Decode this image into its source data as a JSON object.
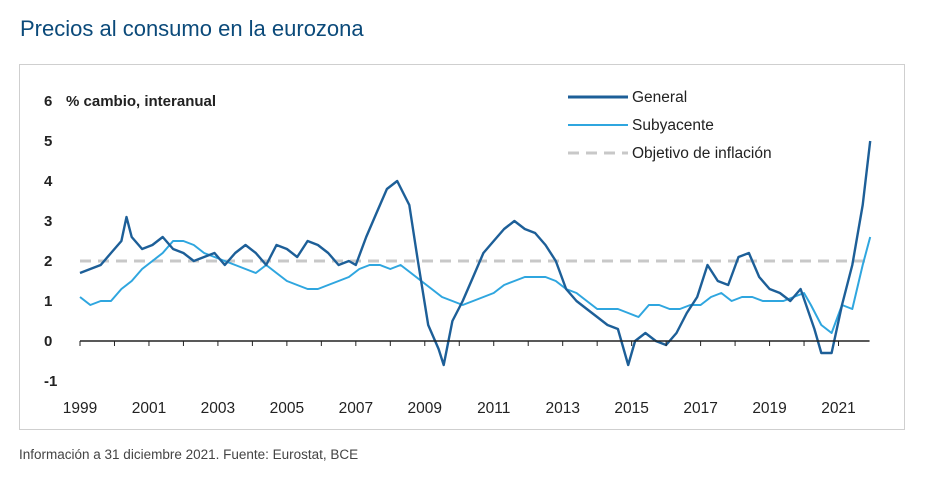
{
  "title": "Precios al consumo en la eurozona",
  "footer": "Información a 31 diciembre 2021. Fuente: Eurostat, BCE",
  "colors": {
    "general": "#1d5f98",
    "subyacente": "#2fa6df",
    "target": "#c8c8c8",
    "title": "#0b4a7a"
  },
  "chart_data": {
    "type": "line",
    "title": "Precios al consumo en la eurozona",
    "ylabel": "% cambio, interanual",
    "xlabel": "",
    "xlim": [
      1999,
      2022
    ],
    "ylim": [
      -1,
      6
    ],
    "y_ticks": [
      -1,
      0,
      1,
      2,
      3,
      4,
      5,
      6
    ],
    "x_ticks": [
      1999,
      2001,
      2003,
      2005,
      2007,
      2009,
      2011,
      2013,
      2015,
      2017,
      2019,
      2021
    ],
    "legend": [
      "General",
      "Subyacente",
      "Objetivo de inflación"
    ],
    "legend_position": "top-right",
    "series": [
      {
        "name": "General",
        "x": [
          1999.0,
          1999.3,
          1999.6,
          1999.9,
          2000.2,
          2000.35,
          2000.5,
          2000.8,
          2001.1,
          2001.4,
          2001.7,
          2002.0,
          2002.3,
          2002.6,
          2002.9,
          2003.2,
          2003.5,
          2003.8,
          2004.1,
          2004.4,
          2004.7,
          2005.0,
          2005.3,
          2005.6,
          2005.9,
          2006.2,
          2006.5,
          2006.8,
          2007.0,
          2007.3,
          2007.6,
          2007.9,
          2008.2,
          2008.55,
          2008.8,
          2009.1,
          2009.4,
          2009.55,
          2009.8,
          2010.1,
          2010.4,
          2010.7,
          2011.0,
          2011.3,
          2011.6,
          2011.9,
          2012.2,
          2012.5,
          2012.8,
          2013.1,
          2013.4,
          2013.7,
          2014.0,
          2014.3,
          2014.6,
          2014.9,
          2015.1,
          2015.4,
          2015.7,
          2016.0,
          2016.3,
          2016.6,
          2016.9,
          2017.2,
          2017.5,
          2017.8,
          2018.1,
          2018.4,
          2018.7,
          2019.0,
          2019.3,
          2019.6,
          2019.9,
          2020.1,
          2020.3,
          2020.5,
          2020.8,
          2021.1,
          2021.4,
          2021.7,
          2021.92
        ],
        "values": [
          1.7,
          1.8,
          1.9,
          2.2,
          2.5,
          3.1,
          2.6,
          2.3,
          2.4,
          2.6,
          2.3,
          2.2,
          2.0,
          2.1,
          2.2,
          1.9,
          2.2,
          2.4,
          2.2,
          1.9,
          2.4,
          2.3,
          2.1,
          2.5,
          2.4,
          2.2,
          1.9,
          2.0,
          1.9,
          2.6,
          3.2,
          3.8,
          4.0,
          3.4,
          2.0,
          0.4,
          -0.2,
          -0.6,
          0.5,
          1.0,
          1.6,
          2.2,
          2.5,
          2.8,
          3.0,
          2.8,
          2.7,
          2.4,
          2.0,
          1.3,
          1.0,
          0.8,
          0.6,
          0.4,
          0.3,
          -0.6,
          0.0,
          0.2,
          0.0,
          -0.1,
          0.2,
          0.7,
          1.1,
          1.9,
          1.5,
          1.4,
          2.1,
          2.2,
          1.6,
          1.3,
          1.2,
          1.0,
          1.3,
          0.8,
          0.3,
          -0.3,
          -0.3,
          0.9,
          1.9,
          3.4,
          5.0
        ]
      },
      {
        "name": "Subyacente",
        "x": [
          1999.0,
          1999.3,
          1999.6,
          1999.9,
          2000.2,
          2000.5,
          2000.8,
          2001.1,
          2001.4,
          2001.7,
          2002.0,
          2002.3,
          2002.6,
          2002.9,
          2003.2,
          2003.5,
          2003.8,
          2004.1,
          2004.4,
          2004.7,
          2005.0,
          2005.3,
          2005.6,
          2005.9,
          2006.2,
          2006.5,
          2006.8,
          2007.1,
          2007.4,
          2007.7,
          2008.0,
          2008.3,
          2008.6,
          2008.9,
          2009.2,
          2009.5,
          2009.8,
          2010.1,
          2010.4,
          2010.7,
          2011.0,
          2011.3,
          2011.6,
          2011.9,
          2012.2,
          2012.5,
          2012.8,
          2013.1,
          2013.4,
          2013.7,
          2014.0,
          2014.3,
          2014.6,
          2014.9,
          2015.2,
          2015.5,
          2015.8,
          2016.1,
          2016.4,
          2016.7,
          2017.0,
          2017.3,
          2017.6,
          2017.9,
          2018.2,
          2018.5,
          2018.8,
          2019.1,
          2019.4,
          2019.7,
          2020.0,
          2020.2,
          2020.5,
          2020.8,
          2021.1,
          2021.4,
          2021.7,
          2021.92
        ],
        "values": [
          1.1,
          0.9,
          1.0,
          1.0,
          1.3,
          1.5,
          1.8,
          2.0,
          2.2,
          2.5,
          2.5,
          2.4,
          2.2,
          2.1,
          2.0,
          1.9,
          1.8,
          1.7,
          1.9,
          1.7,
          1.5,
          1.4,
          1.3,
          1.3,
          1.4,
          1.5,
          1.6,
          1.8,
          1.9,
          1.9,
          1.8,
          1.9,
          1.7,
          1.5,
          1.3,
          1.1,
          1.0,
          0.9,
          1.0,
          1.1,
          1.2,
          1.4,
          1.5,
          1.6,
          1.6,
          1.6,
          1.5,
          1.3,
          1.2,
          1.0,
          0.8,
          0.8,
          0.8,
          0.7,
          0.6,
          0.9,
          0.9,
          0.8,
          0.8,
          0.9,
          0.9,
          1.1,
          1.2,
          1.0,
          1.1,
          1.1,
          1.0,
          1.0,
          1.0,
          1.1,
          1.2,
          0.9,
          0.4,
          0.2,
          0.9,
          0.8,
          1.9,
          2.6
        ]
      },
      {
        "name": "Objetivo de inflación",
        "x": [
          1999,
          2022
        ],
        "values": [
          2,
          2
        ]
      }
    ]
  }
}
